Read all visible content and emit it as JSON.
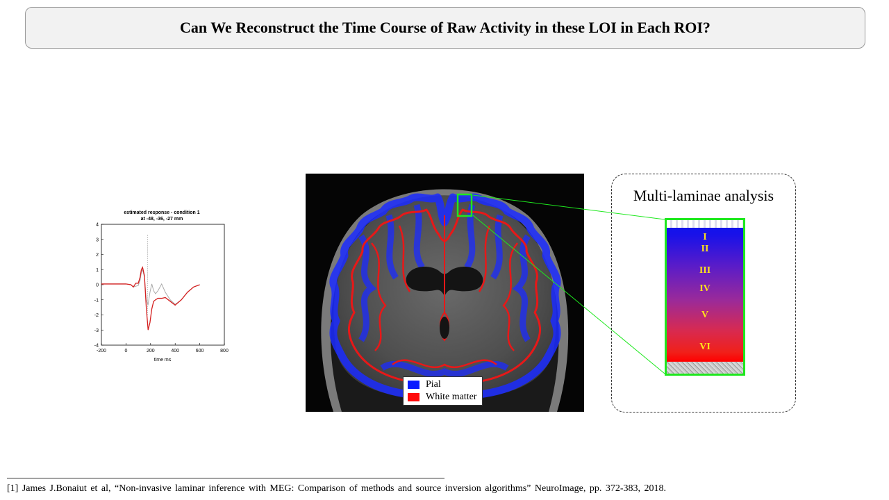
{
  "slide": {
    "title": "Can We Reconstruct the Time Course of Raw Activity in these LOI in Each ROI?",
    "footnote": "[1] James J.Bonaiut  et al, “Non-invasive  laminar  inference  with MEG: Comparison  of methods and source inversion  algorithms”  NeuroImage,  pp. 372-383, 2018."
  },
  "chart_data": {
    "type": "line",
    "title": "estimated response - condition 1",
    "subtitle": "at -48, -36, -27 mm",
    "xlabel": "time  ms",
    "ylabel": "",
    "xlim": [
      -200,
      800
    ],
    "ylim": [
      -4,
      4
    ],
    "x_ticks": [
      -200,
      0,
      200,
      400,
      600,
      800
    ],
    "y_ticks": [
      4,
      3,
      2,
      1,
      0,
      -1,
      -2,
      -3,
      -4
    ],
    "vline_x": 175,
    "series": [
      {
        "color": "#d42020",
        "x": [
          -200,
          -100,
          0,
          40,
          60,
          80,
          100,
          115,
          125,
          135,
          150,
          165,
          180,
          195,
          210,
          225,
          240,
          260,
          290,
          320,
          360,
          400,
          450,
          500,
          550,
          600
        ],
        "y": [
          0.05,
          0.05,
          0.05,
          0,
          -0.15,
          0.1,
          0.1,
          0.5,
          1.0,
          1.15,
          0.6,
          -1.5,
          -3.0,
          -2.5,
          -1.6,
          -1.1,
          -1.0,
          -0.9,
          -0.9,
          -0.85,
          -1.1,
          -1.35,
          -1.0,
          -0.5,
          -0.15,
          0
        ]
      },
      {
        "color": "#aaaaaa",
        "x": [
          -200,
          -100,
          0,
          40,
          60,
          80,
          100,
          115,
          125,
          135,
          150,
          165,
          180,
          195,
          210,
          225,
          240,
          260,
          290,
          320,
          360,
          400,
          450,
          500,
          550,
          600
        ],
        "y": [
          0.05,
          0.05,
          0.05,
          0,
          -0.15,
          -0.1,
          -0.05,
          0.3,
          0.8,
          1.0,
          0.5,
          -1.0,
          -1.3,
          -0.5,
          0.05,
          -0.4,
          -0.6,
          -0.4,
          0.05,
          -0.5,
          -1.0,
          -1.3,
          -1.0,
          -0.5,
          -0.15,
          0
        ]
      }
    ]
  },
  "mri": {
    "legend": [
      {
        "label": "Pial",
        "color": "#0a1aff"
      },
      {
        "label": "White matter",
        "color": "#ff0a0a"
      }
    ],
    "roi_color": "#1ee81e"
  },
  "laminae": {
    "title": "Multi-laminae analysis",
    "layers": [
      "I",
      "II",
      "III",
      "IV",
      "V",
      "VI"
    ]
  }
}
